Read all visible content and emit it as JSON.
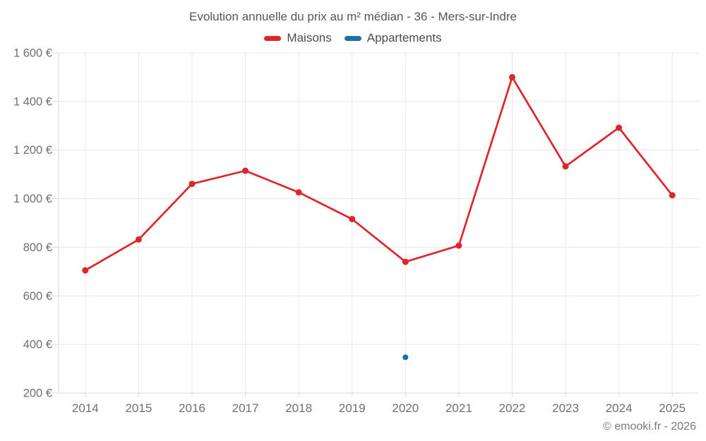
{
  "footer": {
    "credit": "© emooki.fr - 2026"
  },
  "colors": {
    "maisons": "#dd252b",
    "appartements": "#1d6fa6",
    "gridline": "#e7e7e7",
    "axis_line": "#d9d9d9",
    "tick_label": "#6e6f72"
  },
  "chart_data": {
    "type": "line",
    "title": "Evolution annuelle du prix au m² médian - 36 - Mers-sur-Indre",
    "categories": [
      "2014",
      "2015",
      "2016",
      "2017",
      "2018",
      "2019",
      "2020",
      "2021",
      "2022",
      "2023",
      "2024",
      "2025"
    ],
    "series": [
      {
        "name": "Maisons",
        "color": "#dd252b",
        "point_radius": 4.5,
        "values": [
          705,
          832,
          1061,
          1115,
          1026,
          916,
          740,
          807,
          1500,
          1133,
          1292,
          1014
        ]
      },
      {
        "name": "Appartements",
        "color": "#1d6fa6",
        "point_radius": 4,
        "values": [
          null,
          null,
          null,
          null,
          null,
          null,
          347,
          null,
          null,
          null,
          null,
          null
        ]
      }
    ],
    "ylim": [
      200,
      1600
    ],
    "ytick_step": 200,
    "ytick_labels": [
      "200 €",
      "400 €",
      "600 €",
      "800 €",
      "1 000 €",
      "1 200 €",
      "1 400 €",
      "1 600 €"
    ],
    "xlabel": "",
    "ylabel": "",
    "grid": true,
    "legend_position": "top"
  }
}
